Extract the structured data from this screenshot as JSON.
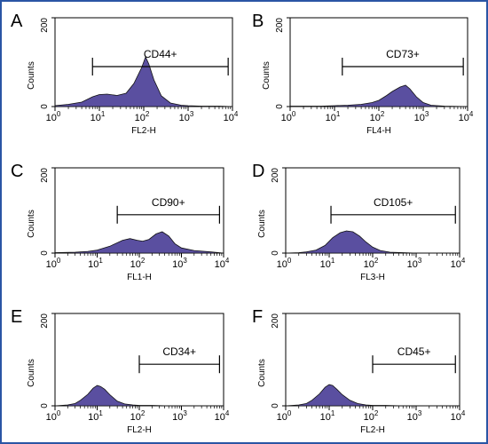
{
  "border_color": "#2a55a4",
  "fill_color": "#5a4fa0",
  "chart_data": [
    {
      "type": "area",
      "letter": "A",
      "gate_label": "CD44+",
      "xlabel": "FL2-H",
      "ylabel": "Counts",
      "xscale": "log",
      "xlim": [
        1,
        10000
      ],
      "ylim": [
        0,
        200
      ],
      "x_ticks": [
        "10^0",
        "10^1",
        "10^2",
        "10^3",
        "10^4"
      ],
      "y_ticks": [
        "0",
        "200"
      ],
      "gate_range": [
        7,
        8000
      ],
      "x": [
        1,
        2,
        4,
        7,
        10,
        15,
        25,
        40,
        60,
        90,
        110,
        130,
        170,
        250,
        400,
        700,
        1000,
        2000,
        5000,
        10000
      ],
      "counts": [
        2,
        5,
        10,
        22,
        27,
        28,
        25,
        30,
        52,
        88,
        112,
        96,
        60,
        24,
        8,
        3,
        2,
        1,
        1,
        0
      ]
    },
    {
      "type": "area",
      "letter": "B",
      "gate_label": "CD73+",
      "xlabel": "FL4-H",
      "ylabel": "Counts",
      "xscale": "log",
      "xlim": [
        1,
        10000
      ],
      "ylim": [
        0,
        200
      ],
      "x_ticks": [
        "10^0",
        "10^1",
        "10^2",
        "10^3",
        "10^4"
      ],
      "y_ticks": [
        "0",
        "200"
      ],
      "gate_range": [
        15,
        8000
      ],
      "x": [
        1,
        5,
        10,
        20,
        40,
        70,
        100,
        150,
        200,
        300,
        400,
        500,
        700,
        1000,
        1500,
        3000,
        10000
      ],
      "counts": [
        1,
        1,
        2,
        3,
        5,
        9,
        14,
        25,
        34,
        44,
        48,
        40,
        22,
        9,
        3,
        1,
        0
      ]
    },
    {
      "type": "area",
      "letter": "C",
      "gate_label": "CD90+",
      "xlabel": "FL1-H",
      "ylabel": "Counts",
      "xscale": "log",
      "xlim": [
        1,
        10000
      ],
      "ylim": [
        0,
        200
      ],
      "x_ticks": [
        "10^0",
        "10^1",
        "10^2",
        "10^3",
        "10^4"
      ],
      "y_ticks": [
        "0",
        "200"
      ],
      "gate_range": [
        30,
        8000
      ],
      "x": [
        1,
        3,
        6,
        10,
        20,
        40,
        60,
        90,
        120,
        170,
        250,
        350,
        500,
        700,
        1000,
        2000,
        5000,
        10000
      ],
      "counts": [
        1,
        2,
        4,
        7,
        16,
        30,
        34,
        30,
        28,
        32,
        45,
        50,
        40,
        22,
        12,
        6,
        3,
        0
      ]
    },
    {
      "type": "area",
      "letter": "D",
      "gate_label": "CD105+",
      "xlabel": "FL3-H",
      "ylabel": "Counts",
      "xscale": "log",
      "xlim": [
        1,
        10000
      ],
      "ylim": [
        0,
        200
      ],
      "x_ticks": [
        "10^0",
        "10^1",
        "10^2",
        "10^3",
        "10^4"
      ],
      "y_ticks": [
        "0",
        "200"
      ],
      "gate_range": [
        11,
        8000
      ],
      "x": [
        1,
        2,
        3,
        5,
        8,
        12,
        18,
        25,
        35,
        50,
        70,
        100,
        150,
        250,
        500,
        1000,
        10000
      ],
      "counts": [
        0,
        1,
        3,
        7,
        18,
        36,
        48,
        52,
        50,
        40,
        26,
        14,
        6,
        2,
        1,
        0,
        0
      ]
    },
    {
      "type": "area",
      "letter": "E",
      "gate_label": "CD34+",
      "xlabel": "FL2-H",
      "ylabel": "Counts",
      "xscale": "log",
      "xlim": [
        1,
        10000
      ],
      "ylim": [
        0,
        200
      ],
      "x_ticks": [
        "10^0",
        "10^1",
        "10^2",
        "10^3",
        "10^4"
      ],
      "y_ticks": [
        "0",
        "200"
      ],
      "gate_range": [
        100,
        8000
      ],
      "x": [
        1,
        2,
        3,
        4,
        6,
        8,
        10,
        12,
        15,
        20,
        30,
        45,
        70,
        100,
        200,
        500,
        1000,
        10000
      ],
      "counts": [
        0,
        2,
        5,
        12,
        25,
        38,
        44,
        42,
        36,
        24,
        10,
        4,
        2,
        1,
        1,
        0,
        0,
        0
      ]
    },
    {
      "type": "area",
      "letter": "F",
      "gate_label": "CD45+",
      "xlabel": "FL2-H",
      "ylabel": "Counts",
      "xscale": "log",
      "xlim": [
        1,
        10000
      ],
      "ylim": [
        0,
        200
      ],
      "x_ticks": [
        "10^0",
        "10^1",
        "10^2",
        "10^3",
        "10^4"
      ],
      "y_ticks": [
        "0",
        "200"
      ],
      "gate_range": [
        100,
        8000
      ],
      "x": [
        1,
        2,
        3,
        4,
        6,
        8,
        10,
        12,
        15,
        20,
        30,
        45,
        70,
        100,
        200,
        500,
        1000,
        10000
      ],
      "counts": [
        0,
        2,
        5,
        12,
        26,
        40,
        46,
        44,
        36,
        24,
        12,
        5,
        2,
        1,
        1,
        0,
        0,
        0
      ]
    }
  ]
}
